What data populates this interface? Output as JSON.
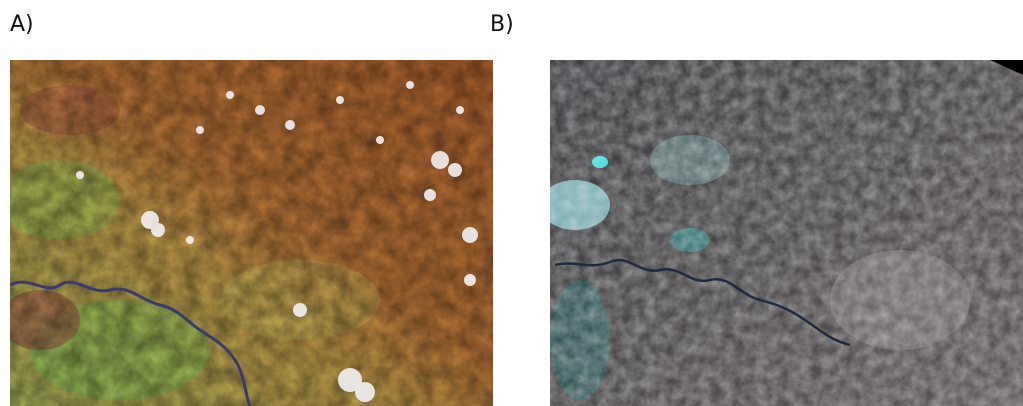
{
  "panels": [
    {
      "label": "A)"
    },
    {
      "label": "B)"
    }
  ]
}
